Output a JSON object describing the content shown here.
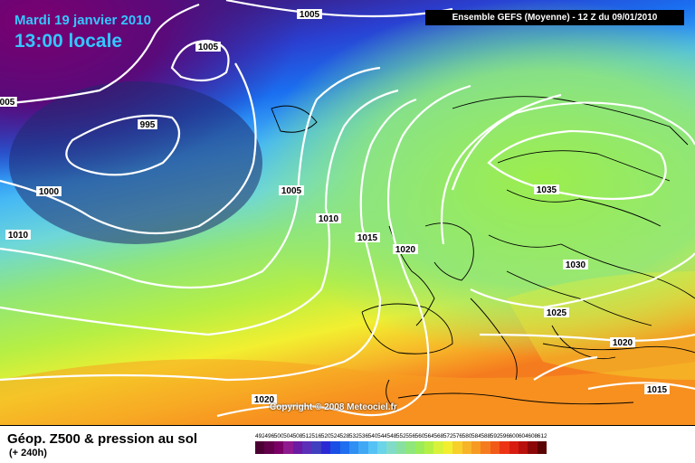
{
  "header": {
    "date": "Mardi 19 janvier 2010",
    "time": "13:00 locale",
    "model": "Ensemble GEFS (Moyenne)  - 12 Z du 09/01/2010"
  },
  "copyright": "Copyright © 2008 Meteociel.fr",
  "footer": {
    "title": "Géop. Z500 & pression au sol",
    "subtitle": "(+ 240h)"
  },
  "isobars": [
    {
      "label": "1005"
    },
    {
      "label": "1005"
    },
    {
      "label": "005"
    },
    {
      "label": "995"
    },
    {
      "label": "1000"
    },
    {
      "label": "1010"
    },
    {
      "label": "1005"
    },
    {
      "label": "1010"
    },
    {
      "label": "1015"
    },
    {
      "label": "1020"
    },
    {
      "label": "1035"
    },
    {
      "label": "1030"
    },
    {
      "label": "1025"
    },
    {
      "label": "1020"
    },
    {
      "label": "1015"
    },
    {
      "label": "1020"
    }
  ],
  "legend": {
    "labels": [
      "492",
      "496",
      "500",
      "504",
      "508",
      "512",
      "516",
      "520",
      "524",
      "528",
      "532",
      "536",
      "540",
      "544",
      "548",
      "552",
      "556",
      "560",
      "564",
      "568",
      "572",
      "576",
      "580",
      "584",
      "588",
      "592",
      "596",
      "600",
      "604",
      "608",
      "612"
    ],
    "colors": [
      "#4b0033",
      "#62004a",
      "#7a0066",
      "#8f1a8f",
      "#6b1aa3",
      "#5b2fb8",
      "#3f3fbf",
      "#2a2ad4",
      "#1a4fe6",
      "#1f6ff0",
      "#2f8ff2",
      "#40a8f5",
      "#55c2f5",
      "#6ad4e8",
      "#80dcc8",
      "#88e0a0",
      "#8fe67a",
      "#9aec5a",
      "#b6ef44",
      "#d8f23a",
      "#f2ef30",
      "#f7d02a",
      "#f7b428",
      "#f79a22",
      "#f57c1e",
      "#f25a18",
      "#ec3414",
      "#d81c10",
      "#b8100c",
      "#8c0808",
      "#5a0404"
    ]
  },
  "colors": {
    "accent_text": "#34c6ff",
    "isobar": "#ffffff"
  }
}
